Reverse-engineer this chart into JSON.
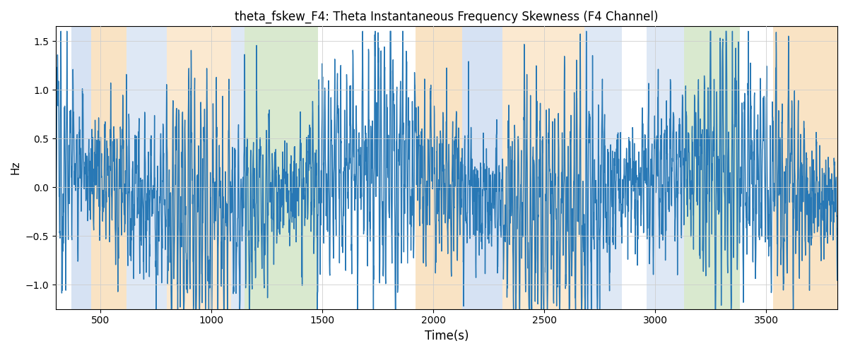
{
  "title": "theta_fskew_F4: Theta Instantaneous Frequency Skewness (F4 Channel)",
  "xlabel": "Time(s)",
  "ylabel": "Hz",
  "xlim": [
    300,
    3820
  ],
  "ylim": [
    -1.25,
    1.65
  ],
  "line_color": "#2878b5",
  "line_width": 1.0,
  "bg_bands": [
    {
      "xmin": 370,
      "xmax": 460,
      "color": "#aec6e8",
      "alpha": 0.5
    },
    {
      "xmin": 460,
      "xmax": 620,
      "color": "#f5c98a",
      "alpha": 0.5
    },
    {
      "xmin": 620,
      "xmax": 800,
      "color": "#aec6e8",
      "alpha": 0.4
    },
    {
      "xmin": 800,
      "xmax": 1090,
      "color": "#f5c98a",
      "alpha": 0.4
    },
    {
      "xmin": 1090,
      "xmax": 1150,
      "color": "#aec6e8",
      "alpha": 0.4
    },
    {
      "xmin": 1150,
      "xmax": 1480,
      "color": "#b5d5a0",
      "alpha": 0.5
    },
    {
      "xmin": 1920,
      "xmax": 2130,
      "color": "#f5c98a",
      "alpha": 0.5
    },
    {
      "xmin": 2130,
      "xmax": 2310,
      "color": "#aec6e8",
      "alpha": 0.5
    },
    {
      "xmin": 2310,
      "xmax": 2430,
      "color": "#f5c98a",
      "alpha": 0.4
    },
    {
      "xmin": 2430,
      "xmax": 2680,
      "color": "#f5c98a",
      "alpha": 0.4
    },
    {
      "xmin": 2680,
      "xmax": 2850,
      "color": "#aec6e8",
      "alpha": 0.4
    },
    {
      "xmin": 2960,
      "xmax": 3130,
      "color": "#aec6e8",
      "alpha": 0.4
    },
    {
      "xmin": 3130,
      "xmax": 3380,
      "color": "#b5d5a0",
      "alpha": 0.5
    },
    {
      "xmin": 3530,
      "xmax": 3820,
      "color": "#f5c98a",
      "alpha": 0.5
    }
  ],
  "grid_color": "#cccccc",
  "grid_alpha": 0.8,
  "yticks": [
    -1.0,
    -0.5,
    0.0,
    0.5,
    1.0,
    1.5
  ],
  "xticks": [
    500,
    1000,
    1500,
    2000,
    2500,
    3000,
    3500
  ]
}
